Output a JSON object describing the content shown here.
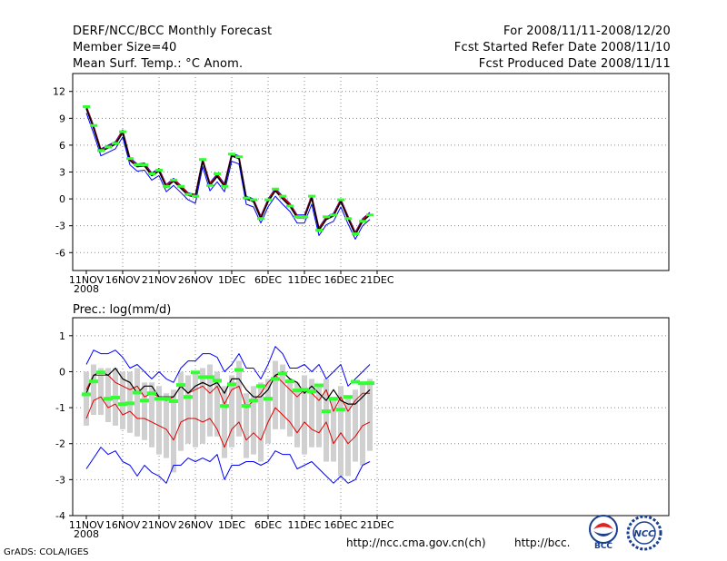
{
  "header": {
    "title": "DERF/NCC/BCC Monthly Forecast",
    "member_size": "Member Size=40",
    "variable": "Mean Surf. Temp.: °C Anom.",
    "period": "For 2008/11/11-2008/12/20",
    "started": "Fcst Started Refer Date 2008/11/10",
    "produced": "Fcst Produced Date 2008/11/11"
  },
  "footer": {
    "url1": "http://ncc.cma.gov.cn(ch)",
    "url2": "http://bcc.",
    "grads": "GrADS: COLA/IGES",
    "logo_bcc": "BCC",
    "logo_ncc": "NCC"
  },
  "colors": {
    "ensemble": "#0000ff",
    "spread": "#dd0000",
    "mean": "#000000",
    "obs": "#33ff33",
    "box": "#d0d0d0"
  },
  "chart_data": [
    {
      "type": "line",
      "title": "Mean Surf. Temp.: °C Anom.",
      "x_tick_labels": [
        "11NOV",
        "16NOV",
        "21NOV",
        "26NOV",
        "1DEC",
        "6DEC",
        "11DEC",
        "16DEC",
        "21DEC"
      ],
      "x_year_label": "2008",
      "days": 40,
      "ylim": [
        -8,
        14
      ],
      "y_ticks": [
        12,
        9,
        6,
        3,
        0,
        -3,
        -6
      ],
      "series": [
        {
          "name": "mean",
          "values": [
            10.1,
            7.9,
            5.3,
            5.7,
            6.1,
            7.4,
            4.3,
            3.6,
            3.7,
            2.6,
            3.1,
            1.3,
            2.0,
            1.2,
            0.4,
            0.2,
            4.2,
            1.5,
            2.5,
            1.4,
            4.8,
            4.5,
            0.0,
            -0.3,
            -2.2,
            -0.3,
            0.9,
            0.0,
            -0.8,
            -2.1,
            -2.1,
            0.1,
            -3.5,
            -2.3,
            -1.9,
            -0.3,
            -2.2,
            -4.0,
            -2.5,
            -1.8
          ]
        },
        {
          "name": "upper",
          "values": [
            10.4,
            8.2,
            5.6,
            6.0,
            6.4,
            7.7,
            4.6,
            3.9,
            4.0,
            2.9,
            3.4,
            1.6,
            2.3,
            1.5,
            0.7,
            0.5,
            4.5,
            1.8,
            2.8,
            1.7,
            5.1,
            4.8,
            0.3,
            0.0,
            -1.9,
            0.0,
            1.2,
            0.3,
            -0.5,
            -1.8,
            -1.8,
            0.4,
            -3.2,
            -2.0,
            -1.6,
            0.0,
            -1.9,
            -3.7,
            -2.2,
            -1.5
          ]
        },
        {
          "name": "lower",
          "values": [
            9.6,
            7.3,
            4.8,
            5.2,
            5.6,
            6.9,
            3.8,
            3.1,
            3.2,
            2.1,
            2.6,
            0.8,
            1.5,
            0.7,
            -0.1,
            -0.5,
            3.6,
            0.9,
            1.9,
            0.8,
            4.2,
            3.9,
            -0.6,
            -0.9,
            -2.7,
            -0.9,
            0.3,
            -0.6,
            -1.4,
            -2.7,
            -2.7,
            -0.6,
            -4.1,
            -2.9,
            -2.5,
            -0.9,
            -2.8,
            -4.5,
            -3.0,
            -2.3
          ]
        },
        {
          "name": "observed",
          "values": [
            10.3,
            8.2,
            5.4,
            5.8,
            6.2,
            7.5,
            4.5,
            3.8,
            3.8,
            2.8,
            3.2,
            1.4,
            2.1,
            1.4,
            0.5,
            0.3,
            4.4,
            1.5,
            2.8,
            1.4,
            5.0,
            4.7,
            0.1,
            -0.1,
            -2.2,
            -0.1,
            1.1,
            0.3,
            -0.8,
            -2.0,
            -2.0,
            0.3,
            -3.5,
            -2.0,
            -1.8,
            -0.1,
            -2.2,
            -3.9,
            -2.5,
            -1.8
          ]
        }
      ]
    },
    {
      "type": "line",
      "title": "Prec.: log(mm/d)",
      "x_tick_labels": [
        "11NOV",
        "16NOV",
        "21NOV",
        "26NOV",
        "1DEC",
        "6DEC",
        "11DEC",
        "16DEC",
        "21DEC"
      ],
      "x_year_label": "2008",
      "days": 40,
      "ylim": [
        -4,
        1.5
      ],
      "y_ticks": [
        1,
        0,
        -1,
        -2,
        -3,
        -4
      ],
      "series": [
        {
          "name": "max",
          "values": [
            0.2,
            0.6,
            0.5,
            0.5,
            0.6,
            0.4,
            0.1,
            0.2,
            0.0,
            -0.2,
            0.0,
            -0.2,
            -0.3,
            0.1,
            0.3,
            0.3,
            0.5,
            0.5,
            0.4,
            0.0,
            0.2,
            0.5,
            0.1,
            0.1,
            -0.2,
            0.2,
            0.7,
            0.5,
            0.1,
            0.1,
            0.2,
            0.0,
            0.2,
            -0.2,
            0.0,
            0.2,
            -0.4,
            -0.2,
            0.0,
            0.2
          ]
        },
        {
          "name": "q75",
          "values": [
            -0.5,
            -0.1,
            -0.1,
            -0.1,
            -0.3,
            -0.4,
            -0.5,
            -0.4,
            -0.7,
            -0.6,
            -0.7,
            -0.8,
            -0.7,
            -0.4,
            -0.6,
            -0.5,
            -0.4,
            -0.6,
            -0.4,
            -0.9,
            -0.5,
            -0.4,
            -1.0,
            -0.8,
            -0.6,
            -0.3,
            -0.1,
            -0.3,
            -0.5,
            -0.7,
            -0.5,
            -0.6,
            -0.8,
            -0.5,
            -1.1,
            -0.7,
            -1.1,
            -0.8,
            -0.6,
            -0.6
          ]
        },
        {
          "name": "mean",
          "values": [
            -0.6,
            -0.1,
            0.0,
            -0.1,
            0.1,
            -0.2,
            -0.3,
            -0.6,
            -0.4,
            -0.4,
            -0.7,
            -0.7,
            -0.7,
            -0.4,
            -0.6,
            -0.4,
            -0.3,
            -0.4,
            -0.3,
            -0.6,
            -0.2,
            -0.2,
            -0.5,
            -0.7,
            -0.7,
            -0.5,
            -0.1,
            0.0,
            -0.2,
            -0.3,
            -0.6,
            -0.4,
            -0.6,
            -0.8,
            -0.5,
            -0.8,
            -0.9,
            -0.9,
            -0.7,
            -0.5
          ]
        },
        {
          "name": "q25",
          "values": [
            -1.3,
            -0.8,
            -0.7,
            -1.0,
            -0.9,
            -1.2,
            -1.1,
            -1.3,
            -1.3,
            -1.4,
            -1.5,
            -1.6,
            -1.9,
            -1.4,
            -1.3,
            -1.3,
            -1.4,
            -1.3,
            -1.6,
            -2.1,
            -1.6,
            -1.4,
            -1.9,
            -1.7,
            -1.9,
            -1.4,
            -1.0,
            -1.2,
            -1.4,
            -1.7,
            -1.4,
            -1.6,
            -1.7,
            -1.4,
            -2.0,
            -1.7,
            -2.0,
            -1.8,
            -1.5,
            -1.4
          ]
        },
        {
          "name": "min",
          "values": [
            -2.7,
            -2.4,
            -2.1,
            -2.3,
            -2.2,
            -2.5,
            -2.6,
            -2.9,
            -2.6,
            -2.8,
            -2.9,
            -3.1,
            -2.6,
            -2.6,
            -2.4,
            -2.5,
            -2.4,
            -2.5,
            -2.3,
            -3.0,
            -2.6,
            -2.6,
            -2.5,
            -2.5,
            -2.6,
            -2.5,
            -2.2,
            -2.3,
            -2.3,
            -2.7,
            -2.6,
            -2.5,
            -2.7,
            -2.9,
            -3.1,
            -2.9,
            -3.1,
            -3.0,
            -2.6,
            -2.5
          ]
        },
        {
          "name": "observed",
          "values": [
            -0.63,
            -0.27,
            -0.02,
            -0.75,
            -0.72,
            -0.9,
            -0.88,
            -0.58,
            -0.8,
            -0.6,
            -0.75,
            -0.75,
            -0.82,
            -0.37,
            -0.7,
            -0.02,
            -0.15,
            -0.15,
            -0.25,
            -0.95,
            -0.35,
            0.05,
            -0.95,
            -0.8,
            -0.4,
            -0.75,
            -0.2,
            -0.05,
            -0.27,
            -0.52,
            -0.5,
            -0.55,
            -0.38,
            -1.1,
            -0.75,
            -1.05,
            -0.7,
            -0.28,
            -0.32,
            -0.32
          ]
        },
        {
          "name": "box_top",
          "values": [
            0.0,
            0.2,
            0.1,
            0.1,
            0.1,
            0.0,
            0.0,
            0.1,
            -0.3,
            -0.3,
            -0.4,
            -0.6,
            -0.5,
            0.0,
            -0.1,
            0.0,
            0.1,
            0.2,
            0.0,
            -0.4,
            -0.1,
            0.3,
            -0.6,
            -0.4,
            -0.3,
            -0.2,
            0.3,
            0.2,
            -0.2,
            -0.3,
            -0.1,
            -0.2,
            -0.4,
            -0.2,
            -0.8,
            -0.4,
            -0.7,
            -0.5,
            -0.3,
            -0.2
          ]
        },
        {
          "name": "box_bottom",
          "values": [
            -1.5,
            -1.2,
            -1.2,
            -1.4,
            -1.5,
            -1.6,
            -1.7,
            -1.8,
            -1.9,
            -2.1,
            -2.3,
            -2.4,
            -2.8,
            -2.2,
            -2.0,
            -2.1,
            -2.0,
            -1.8,
            -1.8,
            -2.4,
            -2.1,
            -1.8,
            -2.4,
            -2.3,
            -2.5,
            -2.0,
            -1.6,
            -1.6,
            -1.8,
            -2.1,
            -2.3,
            -2.1,
            -2.1,
            -2.5,
            -2.5,
            -2.9,
            -2.9,
            -2.5,
            -2.6,
            -2.2
          ]
        }
      ]
    }
  ]
}
